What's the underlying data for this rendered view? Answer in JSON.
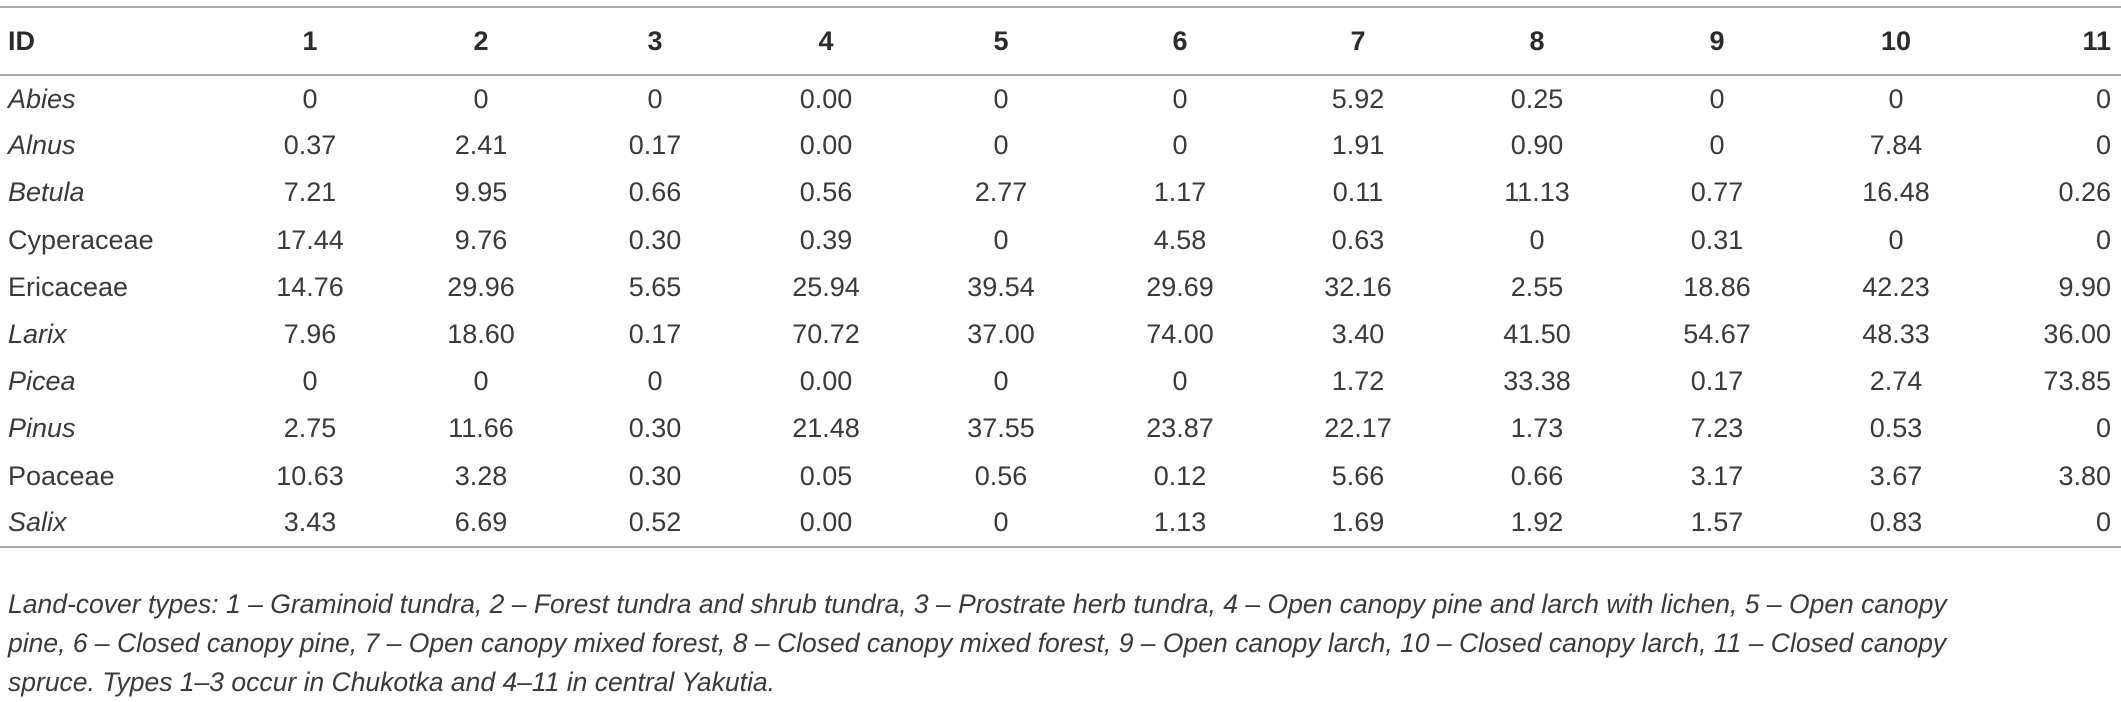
{
  "table": {
    "headers": [
      "ID",
      "1",
      "2",
      "3",
      "4",
      "5",
      "6",
      "7",
      "8",
      "9",
      "10",
      "11"
    ],
    "rows": [
      {
        "taxon": "Abies",
        "italic": true,
        "values": [
          "0",
          "0",
          "0",
          "0.00",
          "0",
          "0",
          "5.92",
          "0.25",
          "0",
          "0",
          "0"
        ]
      },
      {
        "taxon": "Alnus",
        "italic": true,
        "values": [
          "0.37",
          "2.41",
          "0.17",
          "0.00",
          "0",
          "0",
          "1.91",
          "0.90",
          "0",
          "7.84",
          "0"
        ]
      },
      {
        "taxon": "Betula",
        "italic": true,
        "values": [
          "7.21",
          "9.95",
          "0.66",
          "0.56",
          "2.77",
          "1.17",
          "0.11",
          "11.13",
          "0.77",
          "16.48",
          "0.26"
        ]
      },
      {
        "taxon": "Cyperaceae",
        "italic": false,
        "values": [
          "17.44",
          "9.76",
          "0.30",
          "0.39",
          "0",
          "4.58",
          "0.63",
          "0",
          "0.31",
          "0",
          "0"
        ]
      },
      {
        "taxon": "Ericaceae",
        "italic": false,
        "values": [
          "14.76",
          "29.96",
          "5.65",
          "25.94",
          "39.54",
          "29.69",
          "32.16",
          "2.55",
          "18.86",
          "42.23",
          "9.90"
        ]
      },
      {
        "taxon": "Larix",
        "italic": true,
        "values": [
          "7.96",
          "18.60",
          "0.17",
          "70.72",
          "37.00",
          "74.00",
          "3.40",
          "41.50",
          "54.67",
          "48.33",
          "36.00"
        ]
      },
      {
        "taxon": "Picea",
        "italic": true,
        "values": [
          "0",
          "0",
          "0",
          "0.00",
          "0",
          "0",
          "1.72",
          "33.38",
          "0.17",
          "2.74",
          "73.85"
        ]
      },
      {
        "taxon": "Pinus",
        "italic": true,
        "values": [
          "2.75",
          "11.66",
          "0.30",
          "21.48",
          "37.55",
          "23.87",
          "22.17",
          "1.73",
          "7.23",
          "0.53",
          "0"
        ]
      },
      {
        "taxon": "Poaceae",
        "italic": false,
        "values": [
          "10.63",
          "3.28",
          "0.30",
          "0.05",
          "0.56",
          "0.12",
          "5.66",
          "0.66",
          "3.17",
          "3.67",
          "3.80"
        ]
      },
      {
        "taxon": "Salix",
        "italic": true,
        "values": [
          "3.43",
          "6.69",
          "0.52",
          "0.00",
          "0",
          "1.13",
          "1.69",
          "1.92",
          "1.57",
          "0.83",
          "0"
        ]
      }
    ]
  },
  "footnote": {
    "line1": "Land-cover types: 1 – Graminoid tundra, 2 – Forest tundra and shrub tundra, 3 – Prostrate herb tundra, 4 – Open canopy pine and larch with lichen, 5 – Open canopy",
    "line2": "pine, 6 – Closed canopy pine, 7 – Open canopy mixed forest, 8 – Closed canopy mixed forest, 9 – Open canopy larch, 10 – Closed canopy larch, 11 – Closed canopy",
    "line3": "spruce. Types 1–3 occur in Chukotka and 4–11 in central Yakutia."
  }
}
